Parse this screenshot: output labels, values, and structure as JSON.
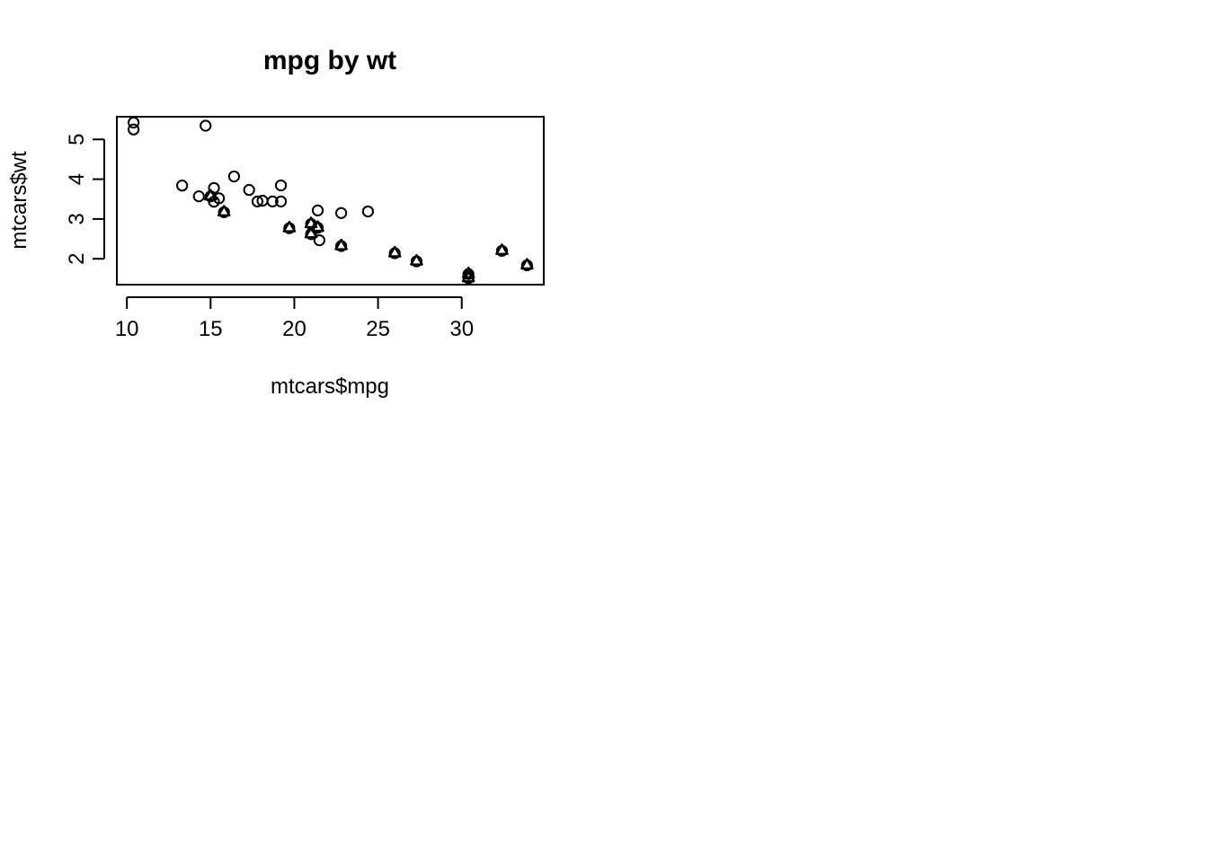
{
  "chart_data": {
    "type": "scatter",
    "title": "mpg by wt",
    "xlabel": "mtcars$mpg",
    "ylabel": "mtcars$wt",
    "xlim": [
      9.4,
      34.9
    ],
    "ylim": [
      1.35,
      5.57
    ],
    "xticks": [
      10,
      15,
      20,
      25,
      30
    ],
    "yticks": [
      2,
      3,
      4,
      5
    ],
    "grid": false,
    "legend": "none",
    "series": [
      {
        "marker": "circle",
        "x": [
          21.0,
          21.0,
          22.8,
          21.4,
          18.7,
          18.1,
          14.3,
          24.4,
          22.8,
          19.2,
          17.8,
          16.4,
          17.3,
          15.2,
          10.4,
          10.4,
          14.7,
          32.4,
          30.4,
          33.9,
          21.5,
          15.5,
          15.2,
          13.3,
          19.2,
          27.3,
          26.0,
          30.4,
          15.8,
          19.7,
          15.0,
          21.4
        ],
        "y": [
          2.62,
          2.875,
          2.32,
          3.215,
          3.44,
          3.46,
          3.57,
          3.19,
          3.15,
          3.44,
          3.44,
          4.07,
          3.73,
          3.78,
          5.25,
          5.424,
          5.345,
          2.2,
          1.615,
          1.835,
          2.465,
          3.52,
          3.435,
          3.84,
          3.845,
          1.935,
          2.14,
          1.513,
          3.17,
          2.77,
          3.57,
          2.78
        ]
      },
      {
        "marker": "triangle",
        "x": [
          21.0,
          21.0,
          22.8,
          32.4,
          30.4,
          33.9,
          27.3,
          26.0,
          30.4,
          15.8,
          19.7,
          15.0,
          21.4
        ],
        "y": [
          2.62,
          2.875,
          2.32,
          2.2,
          1.615,
          1.835,
          1.935,
          2.14,
          1.513,
          3.17,
          2.77,
          3.57,
          2.78
        ]
      }
    ]
  }
}
